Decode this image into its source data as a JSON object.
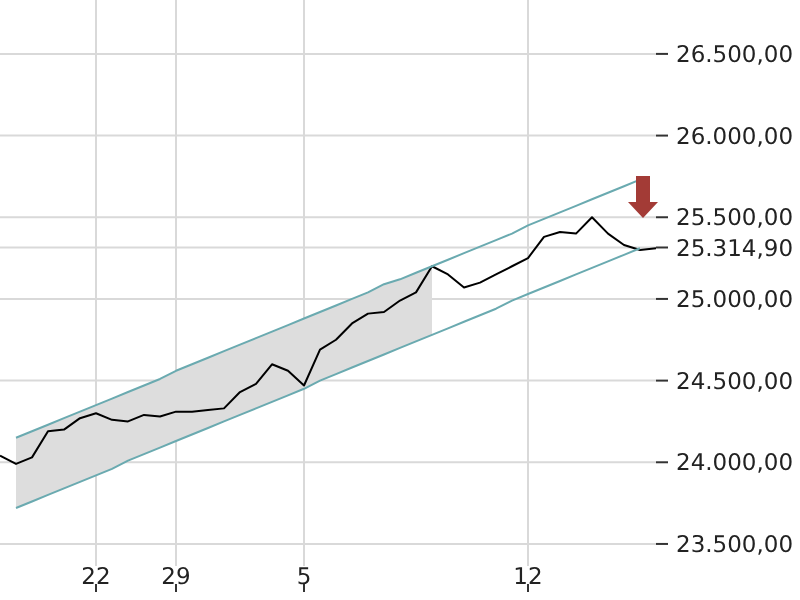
{
  "chart_data": {
    "type": "line",
    "grid": true,
    "line_style": "solid",
    "categories": [
      null,
      null,
      null,
      null,
      null,
      null,
      "22",
      null,
      null,
      null,
      null,
      "29",
      null,
      null,
      null,
      null,
      null,
      null,
      null,
      "5",
      null,
      null,
      null,
      null,
      null,
      null,
      null,
      null,
      null,
      null,
      null,
      null,
      null,
      "12",
      null,
      null,
      null,
      null,
      null,
      null,
      null,
      null
    ],
    "ylim": [
      23365,
      26830
    ],
    "yticks": [
      {
        "value": 23500,
        "label": "23.500,00"
      },
      {
        "value": 24000,
        "label": "24.000,00"
      },
      {
        "value": 24500,
        "label": "24.500,00"
      },
      {
        "value": 25000,
        "label": "25.000,00"
      },
      {
        "value": 25314.9,
        "label": "25.314,90"
      },
      {
        "value": 25500,
        "label": "25.500,00"
      },
      {
        "value": 26000,
        "label": "26.000,00"
      },
      {
        "value": 26500,
        "label": "26.500,00"
      }
    ],
    "series": [
      {
        "color": "#000000",
        "values": [
          24040,
          23990,
          24030,
          24190,
          24200,
          24270,
          24300,
          24260,
          24250,
          24290,
          24280,
          24310,
          24310,
          24320,
          24330,
          24430,
          24480,
          24600,
          24560,
          24470,
          24690,
          24750,
          24850,
          24910,
          24920,
          24990,
          25040,
          25200,
          25150,
          25070,
          25100,
          25150,
          25200,
          25250,
          25380,
          25410,
          25400,
          25500,
          25400,
          25330,
          25300,
          25310
        ],
        "lower": [
          null,
          23720,
          23760,
          23800,
          23840,
          23880,
          23920,
          23960,
          24010,
          24050,
          24090,
          24130,
          24170,
          24210,
          24250,
          24290,
          24330,
          24370,
          24410,
          24450,
          24500,
          24540,
          24580,
          24620,
          24660,
          24700,
          24740,
          24780,
          null,
          null,
          null,
          null,
          null,
          null,
          null,
          null,
          null,
          null,
          null,
          null,
          null,
          null
        ],
        "upper": [
          null,
          24150,
          24190,
          24230,
          24270,
          24310,
          24350,
          24390,
          24430,
          24470,
          24510,
          24560,
          24600,
          24640,
          24680,
          24720,
          24760,
          24800,
          24840,
          24880,
          24920,
          24960,
          25000,
          25040,
          25090,
          25120,
          25160,
          25200,
          null,
          null,
          null,
          null,
          null,
          null,
          null,
          null,
          null,
          null,
          null,
          null,
          null,
          null
        ]
      },
      {
        "color": "#6aaab0",
        "values": [
          null,
          24150,
          24190,
          24230,
          24270,
          24310,
          24350,
          24390,
          24430,
          24470,
          24510,
          24560,
          24600,
          24640,
          24680,
          24720,
          24760,
          24800,
          24840,
          24880,
          24920,
          24960,
          25000,
          25040,
          25090,
          25120,
          25160,
          25200,
          25240,
          25280,
          25320,
          25360,
          25400,
          25450,
          25490,
          25530,
          25570,
          25610,
          25650,
          25690,
          25730,
          null
        ]
      },
      {
        "color": "#6aaab0",
        "values": [
          null,
          23720,
          23760,
          23800,
          23840,
          23880,
          23920,
          23960,
          24010,
          24050,
          24090,
          24130,
          24170,
          24210,
          24250,
          24290,
          24330,
          24370,
          24410,
          24450,
          24500,
          24540,
          24580,
          24620,
          24660,
          24700,
          24740,
          24780,
          24820,
          24860,
          24900,
          24940,
          24990,
          25030,
          25070,
          25110,
          25150,
          25190,
          25230,
          25270,
          25310,
          null
        ]
      }
    ]
  }
}
